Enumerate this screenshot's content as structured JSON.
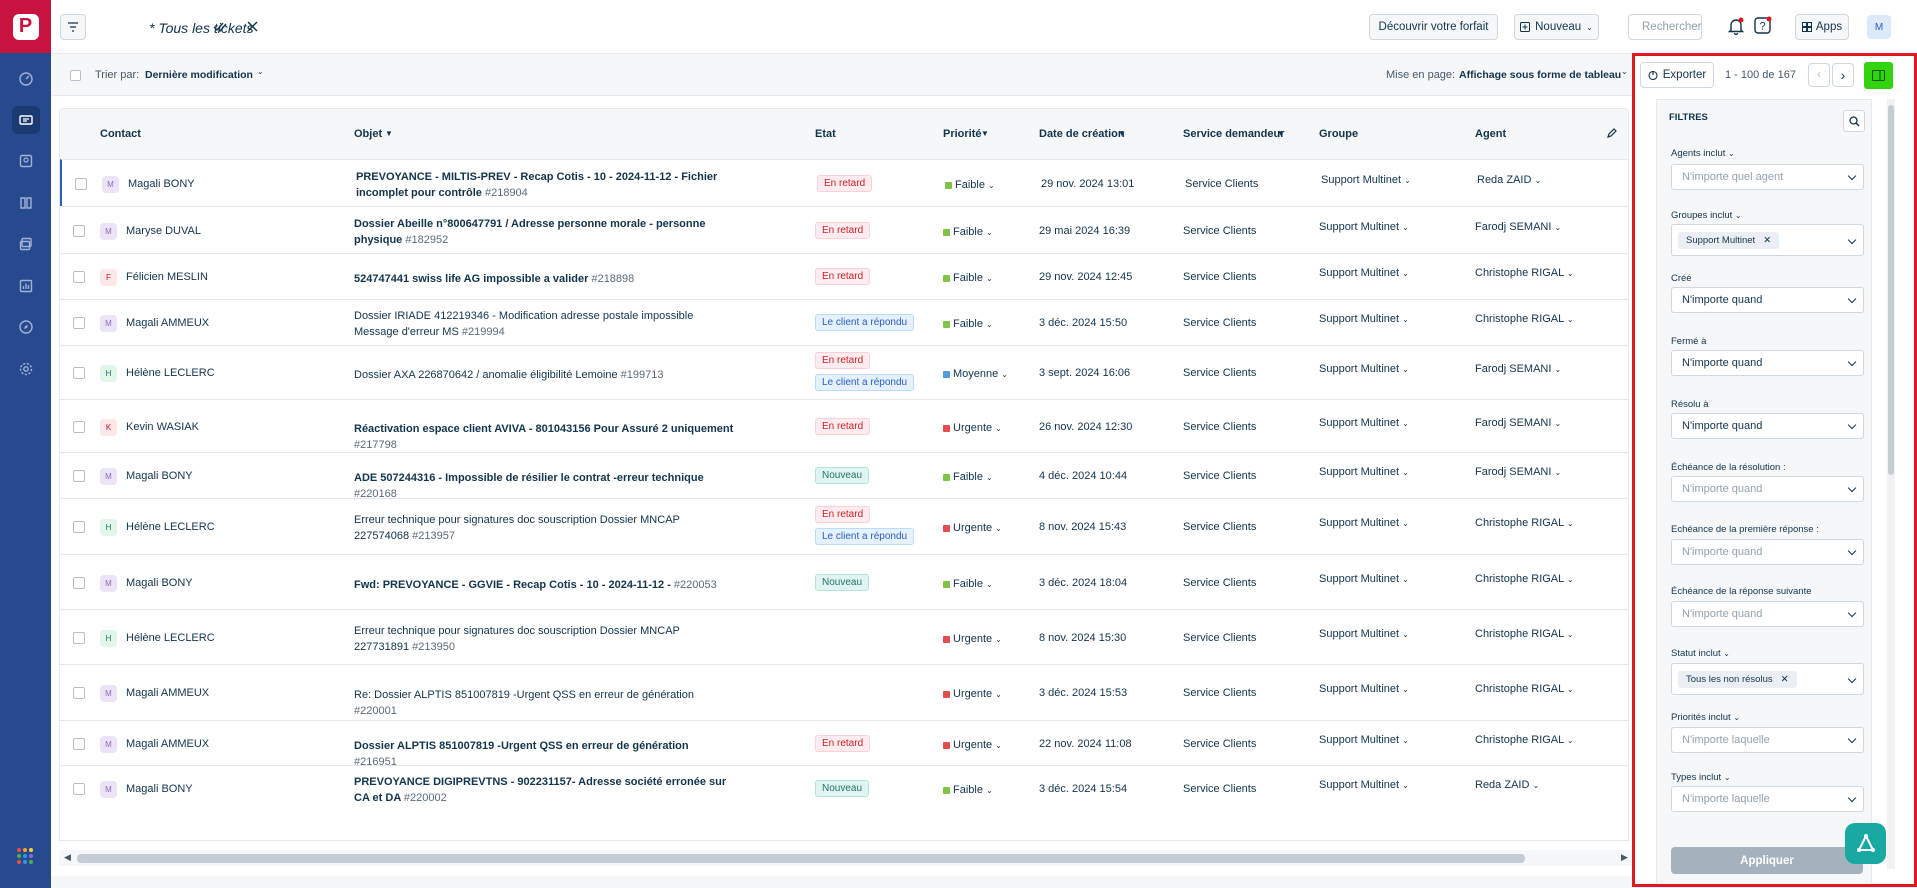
{
  "topbar": {
    "title": "* Tous les tickets",
    "discover": "Découvrir votre forfait",
    "new": "Nouveau",
    "search_placeholder": "Rechercher",
    "apps": "Apps",
    "avatar": "M"
  },
  "subbar": {
    "sort_label": "Trier par:",
    "sort_value": "Dernière modification",
    "layout_label": "Mise en page:",
    "layout_value": "Affichage sous forme de tableau"
  },
  "toolbar": {
    "export": "Exporter",
    "pager": "1 - 100 de 167"
  },
  "columns": {
    "contact": "Contact",
    "objet": "Objet",
    "etat": "Etat",
    "priorite": "Priorité",
    "date": "Date de création",
    "service": "Service demandeur",
    "groupe": "Groupe",
    "agent": "Agent"
  },
  "rows": [
    {
      "initial": "M",
      "contact": "Magali BONY",
      "subject": "PREVOYANCE - MILTIS-PREV - Recap Cotis - 10 - 2024-11-12 - Fichier incomplet pour contrôle",
      "id": "#218904",
      "bold": true,
      "status": [
        "En retard"
      ],
      "priority": "Faible",
      "date": "29 nov. 2024 13:01",
      "service": "Service Clients",
      "group": "Support Multinet",
      "agent": "Reda ZAID"
    },
    {
      "initial": "M",
      "contact": "Maryse DUVAL",
      "subject": "Dossier Abeille n°800647791 / Adresse personne morale - personne physique",
      "id": "#182952",
      "bold": true,
      "status": [
        "En retard"
      ],
      "priority": "Faible",
      "date": "29 mai 2024 16:39",
      "service": "Service Clients",
      "group": "Support Multinet",
      "agent": "Farodj SEMANI"
    },
    {
      "initial": "F",
      "contact": "Félicien MESLIN",
      "subject": "524747441 swiss life AG impossible a valider",
      "id": "#218898",
      "bold": true,
      "status": [
        "En retard"
      ],
      "priority": "Faible",
      "date": "29 nov. 2024 12:45",
      "service": "Service Clients",
      "group": "Support Multinet",
      "agent": "Christophe RIGAL"
    },
    {
      "initial": "M",
      "contact": "Magali AMMEUX",
      "subject": "Dossier IRIADE 412219346 - Modification adresse postale impossible Message d'erreur MS",
      "id": "#219994",
      "bold": false,
      "status": [
        "Le client a répondu"
      ],
      "priority": "Faible",
      "date": "3 déc. 2024 15:50",
      "service": "Service Clients",
      "group": "Support Multinet",
      "agent": "Christophe RIGAL"
    },
    {
      "initial": "H",
      "contact": "Hélène LECLERC",
      "subject": "Dossier AXA 226870642 / anomalie éligibilité Lemoine",
      "id": "#199713",
      "bold": false,
      "status": [
        "En retard",
        "Le client a répondu"
      ],
      "priority": "Moyenne",
      "date": "3 sept. 2024 16:06",
      "service": "Service Clients",
      "group": "Support Multinet",
      "agent": "Farodj SEMANI"
    },
    {
      "initial": "K",
      "contact": "Kevin WASIAK",
      "subject": "Réactivation espace client AVIVA - 801043156 Pour Assuré 2 uniquement",
      "id": "#217798",
      "bold": true,
      "status": [
        "En retard"
      ],
      "priority": "Urgente",
      "date": "26 nov. 2024 12:30",
      "service": "Service Clients",
      "group": "Support Multinet",
      "agent": "Farodj SEMANI"
    },
    {
      "initial": "M",
      "contact": "Magali BONY",
      "subject": "ADE 507244316 - Impossible de résilier le contrat -erreur technique",
      "id": "#220168",
      "bold": true,
      "status": [
        "Nouveau"
      ],
      "priority": "Faible",
      "date": "4 déc. 2024 10:44",
      "service": "Service Clients",
      "group": "Support Multinet",
      "agent": "Farodj SEMANI"
    },
    {
      "initial": "H",
      "contact": "Hélène LECLERC",
      "subject": "Erreur technique pour signatures doc souscription Dossier MNCAP 227574068",
      "id": "#213957",
      "bold": false,
      "status": [
        "En retard",
        "Le client a répondu"
      ],
      "priority": "Urgente",
      "date": "8 nov. 2024 15:43",
      "service": "Service Clients",
      "group": "Support Multinet",
      "agent": "Christophe RIGAL"
    },
    {
      "initial": "M",
      "contact": "Magali BONY",
      "subject": "Fwd: PREVOYANCE - GGVIE - Recap Cotis - 10 - 2024-11-12 -",
      "id": "#220053",
      "bold": true,
      "status": [
        "Nouveau"
      ],
      "priority": "Faible",
      "date": "3 déc. 2024 18:04",
      "service": "Service Clients",
      "group": "Support Multinet",
      "agent": "Christophe RIGAL"
    },
    {
      "initial": "H",
      "contact": "Hélène LECLERC",
      "subject": "Erreur technique pour signatures doc souscription Dossier MNCAP 227731891",
      "id": "#213950",
      "bold": false,
      "status": [],
      "priority": "Urgente",
      "date": "8 nov. 2024 15:30",
      "service": "Service Clients",
      "group": "Support Multinet",
      "agent": "Christophe RIGAL"
    },
    {
      "initial": "M",
      "contact": "Magali AMMEUX",
      "subject": "Re: Dossier ALPTIS 851007819 -Urgent QSS en erreur de génération",
      "id": "#220001",
      "bold": false,
      "status": [],
      "priority": "Urgente",
      "date": "3 déc. 2024 15:53",
      "service": "Service Clients",
      "group": "Support Multinet",
      "agent": "Christophe RIGAL"
    },
    {
      "initial": "M",
      "contact": "Magali AMMEUX",
      "subject": "Dossier ALPTIS 851007819 -Urgent QSS en erreur de génération",
      "id": "#216951",
      "bold": true,
      "status": [
        "En retard"
      ],
      "priority": "Urgente",
      "date": "22 nov. 2024 11:08",
      "service": "Service Clients",
      "group": "Support Multinet",
      "agent": "Christophe RIGAL"
    },
    {
      "initial": "M",
      "contact": "Magali BONY",
      "subject": "PREVOYANCE DIGIPREVTNS - 902231157- Adresse société erronée sur CA et DA",
      "id": "#220002",
      "bold": true,
      "status": [
        "Nouveau"
      ],
      "priority": "Faible",
      "date": "3 déc. 2024 15:54",
      "service": "Service Clients",
      "group": "Support Multinet",
      "agent": "Reda ZAID"
    }
  ],
  "filters": {
    "title": "FILTRES",
    "agents_label": "Agents inclut",
    "agents_ph": "N'importe quel agent",
    "groups_label": "Groupes inclut",
    "groups_chip": "Support Multinet",
    "created_label": "Créé",
    "created_value": "N'importe quand",
    "closed_label": "Fermé à",
    "closed_value": "N'importe quand",
    "resolved_label": "Résolu à",
    "resolved_value": "N'importe quand",
    "due_res_label": "Échéance de la résolution :",
    "due_res_ph": "N'importe quand",
    "due_first_label": "Echéance de la première réponse :",
    "due_first_ph": "N'importe quand",
    "due_next_label": "Échéance de la réponse suivante",
    "due_next_ph": "N'importe quand",
    "status_label": "Statut inclut",
    "status_chip": "Tous les non résolus",
    "prio_label": "Priorités inclut",
    "prio_ph": "N'importe laquelle",
    "types_label": "Types inclut",
    "types_ph": "N'importe laquelle",
    "apply": "Appliquer"
  },
  "colors": {
    "nav": "#274a8e",
    "logo": "#c8123f",
    "highlight": "#e0191f",
    "accent_green": "#33d40f"
  }
}
